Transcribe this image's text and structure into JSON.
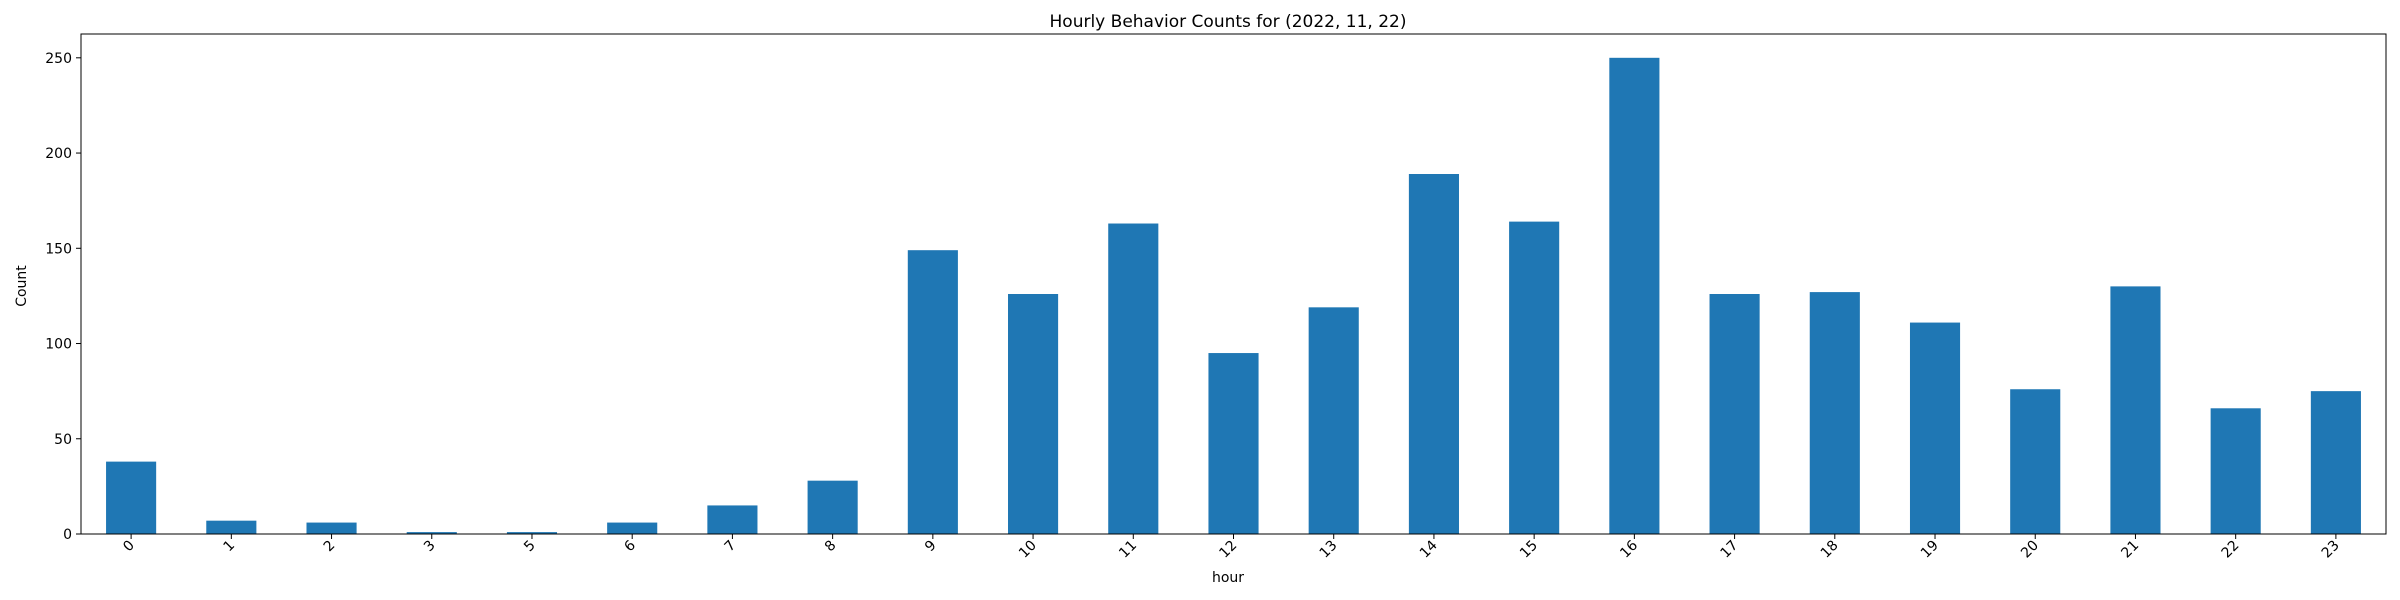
{
  "chart_data": {
    "type": "bar",
    "title": "Hourly Behavior Counts for (2022, 11, 22)",
    "xlabel": "hour",
    "ylabel": "Count",
    "categories": [
      "0",
      "1",
      "2",
      "3",
      "5",
      "6",
      "7",
      "8",
      "9",
      "10",
      "11",
      "12",
      "13",
      "14",
      "15",
      "16",
      "17",
      "18",
      "19",
      "20",
      "21",
      "22",
      "23"
    ],
    "values": [
      38,
      7,
      6,
      1,
      1,
      6,
      15,
      28,
      149,
      126,
      163,
      95,
      119,
      189,
      164,
      250,
      126,
      127,
      111,
      76,
      130,
      66,
      75
    ],
    "ylim": [
      0,
      262.5
    ],
    "yticks": [
      0,
      50,
      100,
      150,
      200,
      250
    ],
    "grid": false,
    "legend": "none",
    "bar_color": "#1f77b4"
  }
}
